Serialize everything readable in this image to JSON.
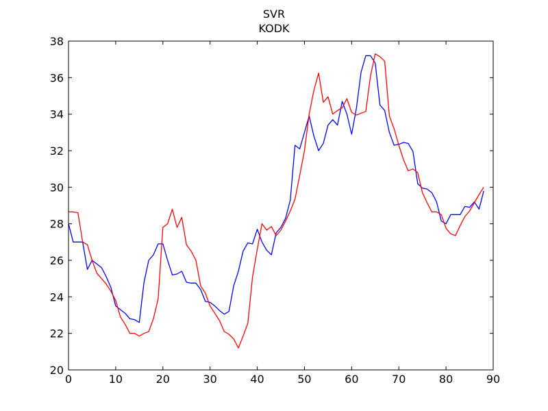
{
  "chart_data": {
    "type": "line",
    "title": "SVR",
    "subtitle": "KODK",
    "xlabel": "",
    "ylabel": "",
    "xlim": [
      0,
      90
    ],
    "ylim": [
      20,
      38
    ],
    "xticks": [
      0,
      10,
      20,
      30,
      40,
      50,
      60,
      70,
      80,
      90
    ],
    "yticks": [
      20,
      22,
      24,
      26,
      28,
      30,
      32,
      34,
      36,
      38
    ],
    "grid": false,
    "colors": {
      "blue": "#0000ff",
      "red": "#ff0000"
    },
    "series": [
      {
        "color": "#0000ff",
        "x": [
          0,
          1,
          2,
          3,
          4,
          5,
          6,
          7,
          8,
          9,
          10,
          11,
          12,
          13,
          14,
          15,
          16,
          17,
          18,
          19,
          20,
          21,
          22,
          23,
          24,
          25,
          26,
          27,
          28,
          29,
          30,
          31,
          32,
          33,
          34,
          35,
          36,
          37,
          38,
          39,
          40,
          41,
          42,
          43,
          44,
          45,
          46,
          47,
          48,
          49,
          50,
          51,
          52,
          53,
          54,
          55,
          56,
          57,
          58,
          59,
          60,
          61,
          62,
          63,
          64,
          65,
          66,
          67,
          68,
          69,
          70,
          71,
          72,
          73,
          74,
          75,
          76,
          77,
          78,
          79,
          80,
          81,
          82,
          83,
          84,
          85,
          86,
          87,
          88
        ],
        "values": [
          28.0,
          27.0,
          27.0,
          27.0,
          25.5,
          26.0,
          25.8,
          25.6,
          25.1,
          24.5,
          23.5,
          23.3,
          23.1,
          22.8,
          22.75,
          22.6,
          24.8,
          26.0,
          26.3,
          26.9,
          26.9,
          26.0,
          25.2,
          25.25,
          25.4,
          24.8,
          24.75,
          24.75,
          24.4,
          23.75,
          23.7,
          23.5,
          23.25,
          23.05,
          23.2,
          24.6,
          25.4,
          26.5,
          26.95,
          26.9,
          27.7,
          27.0,
          26.55,
          26.3,
          27.5,
          27.8,
          28.3,
          29.3,
          32.3,
          32.1,
          33.0,
          33.9,
          32.8,
          32.0,
          32.4,
          33.4,
          33.7,
          33.4,
          34.7,
          34.0,
          32.9,
          34.3,
          36.3,
          37.2,
          37.2,
          36.8,
          34.5,
          34.2,
          33.0,
          32.3,
          32.35,
          32.45,
          32.4,
          31.95,
          30.2,
          29.95,
          29.9,
          29.7,
          29.2,
          28.15,
          28.0,
          28.5,
          28.5,
          28.5,
          28.95,
          28.9,
          29.2,
          28.8,
          29.8
        ]
      },
      {
        "color": "#ff0000",
        "x": [
          0,
          1,
          2,
          3,
          4,
          5,
          6,
          7,
          8,
          9,
          10,
          11,
          12,
          13,
          14,
          15,
          16,
          17,
          18,
          19,
          20,
          21,
          22,
          23,
          24,
          25,
          26,
          27,
          28,
          29,
          30,
          31,
          32,
          33,
          34,
          35,
          36,
          37,
          38,
          39,
          40,
          41,
          42,
          43,
          44,
          45,
          46,
          47,
          48,
          49,
          50,
          51,
          52,
          53,
          54,
          55,
          56,
          57,
          58,
          59,
          60,
          61,
          62,
          63,
          64,
          65,
          66,
          67,
          68,
          69,
          70,
          71,
          72,
          73,
          74,
          75,
          76,
          77,
          78,
          79,
          80,
          81,
          82,
          83,
          84,
          85,
          86,
          87,
          88
        ],
        "values": [
          28.65,
          28.65,
          28.6,
          27.0,
          26.85,
          26.0,
          25.3,
          25.0,
          24.7,
          24.3,
          23.8,
          22.9,
          22.5,
          22.0,
          22.0,
          21.85,
          22.0,
          22.1,
          22.8,
          23.9,
          27.8,
          28.0,
          28.8,
          27.8,
          28.35,
          26.85,
          26.5,
          26.0,
          24.6,
          24.2,
          23.5,
          23.1,
          22.7,
          22.1,
          21.95,
          21.7,
          21.2,
          21.85,
          22.55,
          25.1,
          26.6,
          28.0,
          27.65,
          27.85,
          27.35,
          27.65,
          28.15,
          28.7,
          29.35,
          30.65,
          32.0,
          34.0,
          35.3,
          36.25,
          34.65,
          34.95,
          34.0,
          34.2,
          34.35,
          34.85,
          34.1,
          33.95,
          34.05,
          34.15,
          36.1,
          37.3,
          37.15,
          36.9,
          33.9,
          33.2,
          32.3,
          31.5,
          30.9,
          31.0,
          30.8,
          29.7,
          29.15,
          28.65,
          28.65,
          28.5,
          27.75,
          27.45,
          27.35,
          27.9,
          28.4,
          28.7,
          29.15,
          29.6,
          30.0
        ]
      }
    ]
  }
}
